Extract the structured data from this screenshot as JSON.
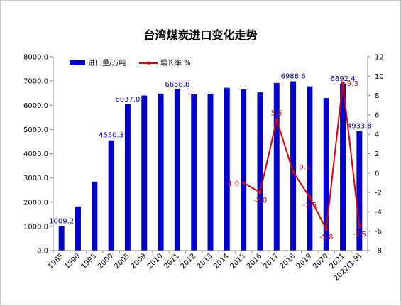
{
  "chart_data": {
    "type": "bar",
    "title": "台湾煤炭进口变化走势",
    "categories": [
      "1985",
      "1990",
      "1995",
      "2000",
      "2005",
      "2009",
      "2010",
      "2011",
      "2012",
      "2013",
      "2014",
      "2015",
      "2016",
      "2017",
      "2018",
      "2019",
      "2020",
      "2021",
      "2022(1-9)"
    ],
    "series": [
      {
        "name": "进口量/万吨",
        "type": "bar",
        "axis": "left",
        "color": "#0000cc",
        "values": [
          1009.2,
          1820,
          2850,
          4550.3,
          6037.0,
          6400,
          6480,
          6658.8,
          6450,
          6480,
          6720,
          6650,
          6530,
          6920,
          6988.6,
          6780,
          6300,
          6892.4,
          4933.8
        ]
      },
      {
        "name": "增长率 %",
        "type": "line",
        "axis": "right",
        "color": "#e00000",
        "points": [
          {
            "x": "2015",
            "y": -1.0
          },
          {
            "x": "2016",
            "y": -2.0
          },
          {
            "x": "2017",
            "y": 5.5
          },
          {
            "x": "2018",
            "y": 0.1
          },
          {
            "x": "2019",
            "y": -2.5
          },
          {
            "x": "2020",
            "y": -5.8
          },
          {
            "x": "2021",
            "y": 9.3
          },
          {
            "x": "2022(1-9)",
            "y": -5.5
          }
        ]
      }
    ],
    "bar_labels": [
      {
        "x": "1985",
        "text": "1009.2"
      },
      {
        "x": "2000",
        "text": "4550.3"
      },
      {
        "x": "2005",
        "text": "6037.0"
      },
      {
        "x": "2011",
        "text": "6658.8"
      },
      {
        "x": "2018",
        "text": "6988.6"
      },
      {
        "x": "2021",
        "text": "6892.4"
      },
      {
        "x": "2022(1-9)",
        "text": "4933.8"
      }
    ],
    "growth_labels": [
      {
        "x": "2015",
        "text": "-1.0"
      },
      {
        "x": "2016",
        "text": "-2.0"
      },
      {
        "x": "2017",
        "text": "5.5"
      },
      {
        "x": "2018",
        "text": "0.1"
      },
      {
        "x": "2019",
        "text": "-2.5"
      },
      {
        "x": "2020",
        "text": "-5.8"
      },
      {
        "x": "2021",
        "text": "9.3"
      },
      {
        "x": "2022(1-9)",
        "text": "-5.5"
      }
    ],
    "left_axis": {
      "ylim": [
        0,
        8000
      ],
      "ticks": [
        "0.0",
        "1000.0",
        "2000.0",
        "3000.0",
        "4000.0",
        "5000.0",
        "6000.0",
        "7000.0",
        "8000.0"
      ]
    },
    "right_axis": {
      "ylim": [
        -8,
        12
      ],
      "ticks": [
        "-8",
        "-6",
        "-4",
        "-2",
        "0",
        "2",
        "4",
        "6",
        "8",
        "10",
        "12"
      ]
    },
    "legend": {
      "placement": "top-left",
      "items": [
        "进口量/万吨",
        "增长率 %"
      ]
    },
    "grid": false
  }
}
